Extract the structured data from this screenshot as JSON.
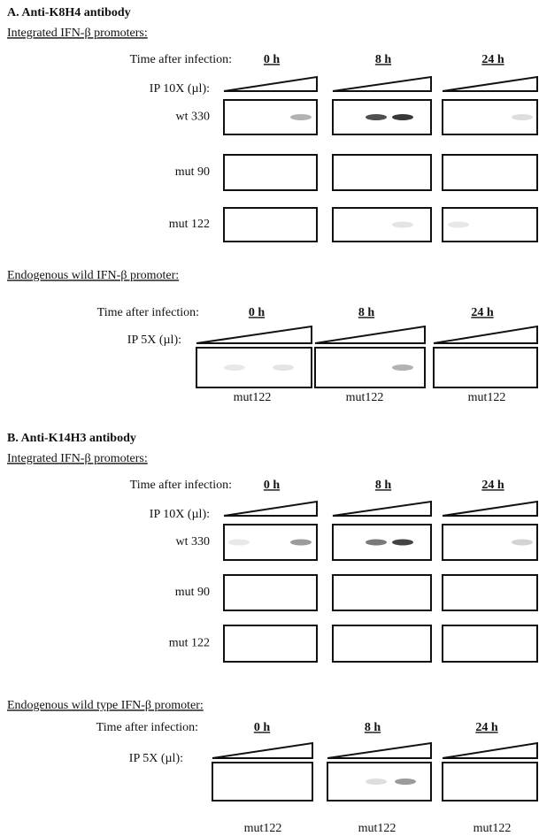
{
  "sections": [
    {
      "title": "A. Anti-K8H4 antibody",
      "integrated": {
        "title": "Integrated IFN-β promoters:",
        "time_label": "Time after infection:",
        "timepoints": [
          "0 h",
          "8 h",
          "24 h"
        ],
        "ip_label": "IP 10X (µl):",
        "rows": [
          "wt 330",
          "mut 90",
          "mut 122"
        ]
      },
      "endogenous": {
        "title": "Endogenous wild IFN-β promoter:",
        "time_label": "Time after infection:",
        "timepoints": [
          "0 h",
          "8 h",
          "24 h"
        ],
        "ip_label": "IP 5X (µl):",
        "lanes": [
          "mut122",
          "mut122",
          "mut122"
        ]
      }
    },
    {
      "title": "B. Anti-K14H3 antibody",
      "integrated": {
        "title": "Integrated IFN-β promoters:",
        "time_label": "Time after infection:",
        "timepoints": [
          "0 h",
          "8 h",
          "24 h"
        ],
        "ip_label": "IP 10X (µl):",
        "rows": [
          "wt 330",
          "mut 90",
          "mut 122"
        ]
      },
      "endogenous": {
        "title": "Endogenous wild type IFN-β promoter:",
        "time_label": "Time after infection:",
        "timepoints": [
          "0 h",
          "8 h",
          "24 h"
        ],
        "ip_label": "IP 5X (µl):",
        "lanes": [
          "mut122",
          "mut122",
          "mut122"
        ]
      }
    }
  ]
}
